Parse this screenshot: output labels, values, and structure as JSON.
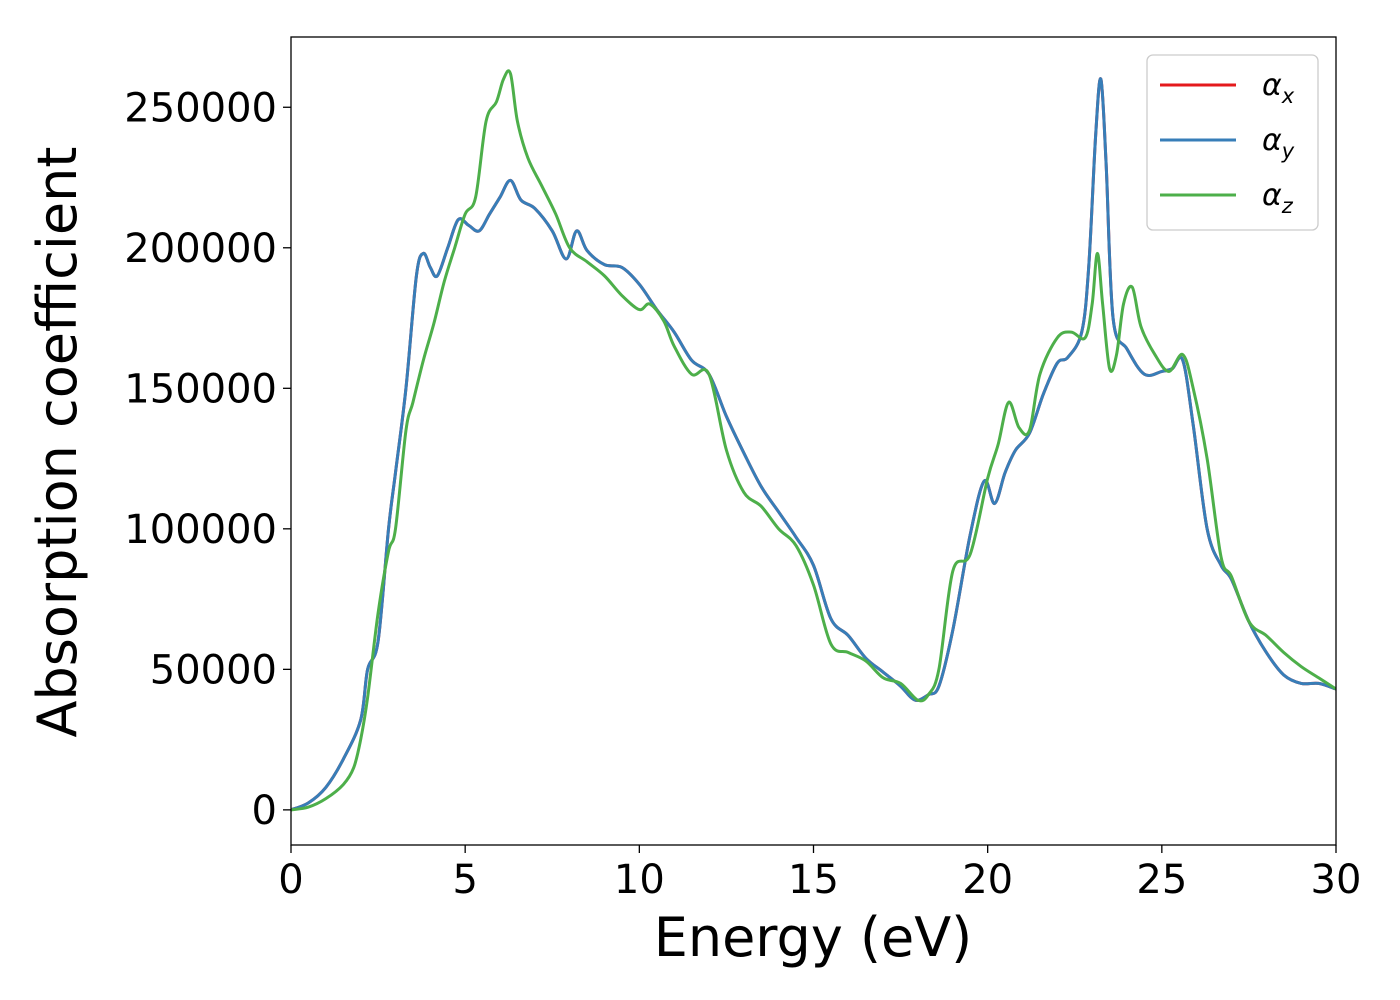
{
  "chart_data": {
    "type": "line",
    "xlabel": "Energy (eV)",
    "ylabel": "Absorption coefficient",
    "xlim": [
      0,
      30
    ],
    "ylim": [
      -12500,
      275000
    ],
    "x_ticks": [
      "0",
      "5",
      "10",
      "15",
      "20",
      "25",
      "30"
    ],
    "y_ticks": [
      "0",
      "50000",
      "100000",
      "150000",
      "200000",
      "250000"
    ],
    "grid": false,
    "legend_position": "top-right",
    "series": [
      {
        "name": "α",
        "subscript": "x",
        "color": "#e41a1c",
        "x": [
          0,
          0.5,
          1.0,
          1.5,
          2.0,
          2.2,
          2.5,
          2.8,
          3.0,
          3.3,
          3.6,
          3.8,
          4.0,
          4.2,
          4.5,
          4.8,
          5.1,
          5.4,
          5.7,
          6.0,
          6.3,
          6.6,
          7.0,
          7.5,
          7.9,
          8.2,
          8.5,
          9.0,
          9.5,
          10.0,
          10.5,
          11.0,
          11.5,
          12.0,
          12.5,
          13.0,
          13.5,
          14.0,
          14.5,
          15.0,
          15.5,
          16.0,
          16.5,
          17.0,
          17.5,
          17.8,
          18.0,
          18.3,
          18.6,
          19.0,
          19.5,
          19.9,
          20.2,
          20.5,
          20.8,
          21.2,
          21.6,
          22.0,
          22.3,
          22.7,
          22.9,
          23.1,
          23.25,
          23.4,
          23.6,
          24.0,
          24.5,
          25.0,
          25.3,
          25.6,
          25.9,
          26.3,
          26.7,
          27.0,
          27.5,
          28.0,
          28.5,
          29.0,
          29.5,
          30.0
        ],
        "y": [
          0,
          2500,
          8000,
          18000,
          32000,
          50000,
          60000,
          100000,
          120000,
          150000,
          190000,
          198000,
          193000,
          190000,
          200000,
          210000,
          208000,
          206000,
          212000,
          218000,
          224000,
          217000,
          214000,
          206000,
          196000,
          206000,
          199000,
          194000,
          193000,
          187000,
          178000,
          170000,
          160000,
          155000,
          140000,
          127000,
          115000,
          106000,
          97000,
          87000,
          68000,
          62000,
          54000,
          49000,
          44000,
          40000,
          39000,
          41000,
          44000,
          64000,
          98000,
          117000,
          109000,
          120000,
          128000,
          134000,
          148000,
          159000,
          161000,
          170000,
          193000,
          240000,
          260000,
          230000,
          175000,
          164000,
          155000,
          156000,
          157000,
          160000,
          137000,
          100000,
          87000,
          82000,
          67000,
          56000,
          48000,
          45000,
          45000,
          43000
        ]
      },
      {
        "name": "α",
        "subscript": "y",
        "color": "#377eb8",
        "x": [
          0,
          0.5,
          1.0,
          1.5,
          2.0,
          2.2,
          2.5,
          2.8,
          3.0,
          3.3,
          3.6,
          3.8,
          4.0,
          4.2,
          4.5,
          4.8,
          5.1,
          5.4,
          5.7,
          6.0,
          6.3,
          6.6,
          7.0,
          7.5,
          7.9,
          8.2,
          8.5,
          9.0,
          9.5,
          10.0,
          10.5,
          11.0,
          11.5,
          12.0,
          12.5,
          13.0,
          13.5,
          14.0,
          14.5,
          15.0,
          15.5,
          16.0,
          16.5,
          17.0,
          17.5,
          17.8,
          18.0,
          18.3,
          18.6,
          19.0,
          19.5,
          19.9,
          20.2,
          20.5,
          20.8,
          21.2,
          21.6,
          22.0,
          22.3,
          22.7,
          22.9,
          23.1,
          23.25,
          23.4,
          23.6,
          24.0,
          24.5,
          25.0,
          25.3,
          25.6,
          25.9,
          26.3,
          26.7,
          27.0,
          27.5,
          28.0,
          28.5,
          29.0,
          29.5,
          30.0
        ],
        "y": [
          0,
          2500,
          8000,
          18000,
          32000,
          50000,
          60000,
          100000,
          120000,
          150000,
          190000,
          198000,
          193000,
          190000,
          200000,
          210000,
          208000,
          206000,
          212000,
          218000,
          224000,
          217000,
          214000,
          206000,
          196000,
          206000,
          199000,
          194000,
          193000,
          187000,
          178000,
          170000,
          160000,
          155000,
          140000,
          127000,
          115000,
          106000,
          97000,
          87000,
          68000,
          62000,
          54000,
          49000,
          44000,
          40000,
          39000,
          41000,
          44000,
          64000,
          98000,
          117000,
          109000,
          120000,
          128000,
          134000,
          148000,
          159000,
          161000,
          170000,
          193000,
          240000,
          260000,
          230000,
          175000,
          164000,
          155000,
          156000,
          157000,
          160000,
          137000,
          100000,
          87000,
          82000,
          67000,
          56000,
          48000,
          45000,
          45000,
          43000
        ]
      },
      {
        "name": "α",
        "subscript": "z",
        "color": "#4daf4a",
        "x": [
          0,
          0.5,
          1.0,
          1.5,
          1.8,
          2.0,
          2.2,
          2.5,
          2.8,
          3.0,
          3.3,
          3.5,
          3.8,
          4.1,
          4.4,
          4.7,
          5.0,
          5.3,
          5.6,
          5.9,
          6.1,
          6.3,
          6.5,
          6.8,
          7.2,
          7.6,
          8.0,
          8.5,
          9.0,
          9.5,
          10.0,
          10.3,
          10.7,
          11.0,
          11.5,
          12.0,
          12.5,
          13.0,
          13.5,
          14.0,
          14.5,
          15.0,
          15.5,
          16.0,
          16.5,
          17.0,
          17.5,
          18.0,
          18.3,
          18.6,
          19.0,
          19.5,
          20.0,
          20.3,
          20.6,
          20.9,
          21.2,
          21.5,
          22.0,
          22.4,
          22.8,
          23.0,
          23.15,
          23.3,
          23.5,
          23.7,
          23.9,
          24.15,
          24.4,
          24.8,
          25.2,
          25.6,
          25.9,
          26.3,
          26.7,
          27.0,
          27.5,
          28.0,
          28.5,
          29.0,
          29.5,
          30.0
        ],
        "y": [
          0,
          1000,
          4000,
          9000,
          15000,
          25000,
          40000,
          70000,
          92000,
          100000,
          135000,
          145000,
          160000,
          173000,
          188000,
          200000,
          212000,
          218000,
          245000,
          252000,
          260000,
          262000,
          245000,
          232000,
          222000,
          212000,
          200000,
          195000,
          190000,
          183000,
          178000,
          180000,
          174000,
          165000,
          155000,
          155000,
          128000,
          113000,
          108000,
          100000,
          94000,
          80000,
          59000,
          56000,
          53000,
          47000,
          45000,
          39000,
          41000,
          50000,
          85000,
          91000,
          118000,
          130000,
          145000,
          136000,
          135000,
          155000,
          168000,
          170000,
          168000,
          180000,
          198000,
          180000,
          157000,
          162000,
          180000,
          186000,
          172000,
          162000,
          156000,
          162000,
          150000,
          125000,
          90000,
          83000,
          67000,
          62000,
          56000,
          51000,
          47000,
          43000
        ]
      }
    ]
  }
}
